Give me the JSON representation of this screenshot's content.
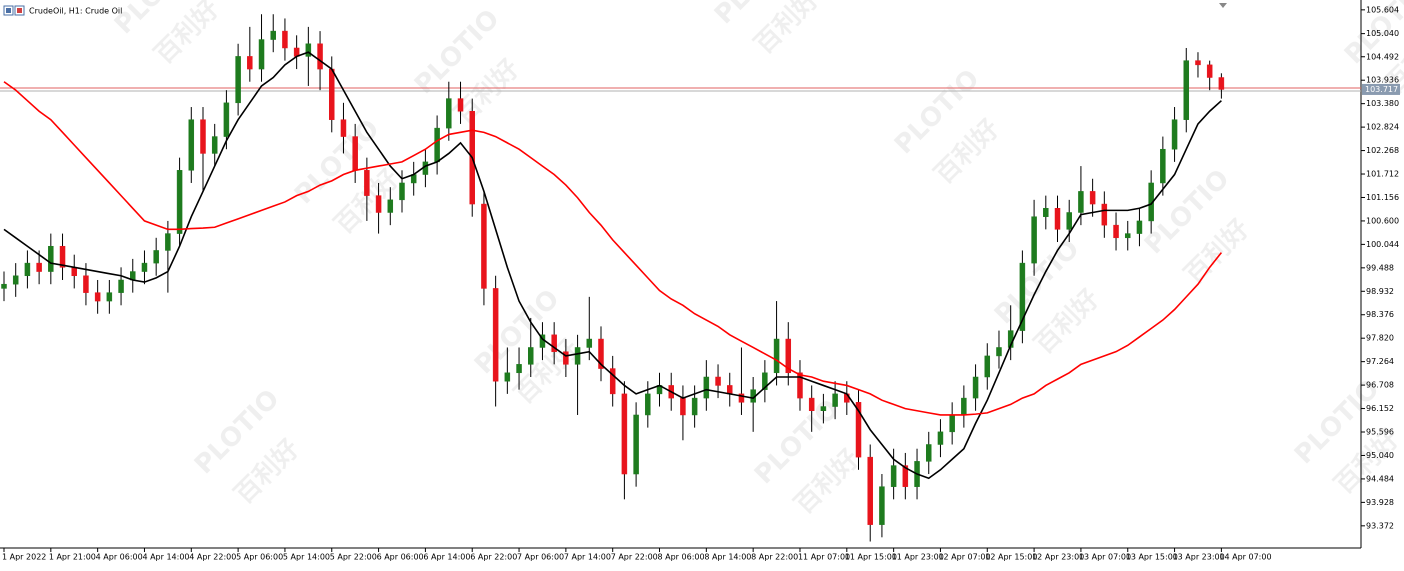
{
  "chart_data": {
    "type": "candlestick",
    "title": "CrudeOil, H1:  Crude Oil",
    "watermark": [
      "PLOTIO",
      "百利好"
    ],
    "categories": [
      "1 Apr 2022",
      null,
      null,
      null,
      "1 Apr 21:00",
      null,
      null,
      null,
      "4 Apr 06:00",
      null,
      null,
      null,
      "4 Apr 14:00",
      null,
      null,
      null,
      "4 Apr 22:00",
      null,
      null,
      null,
      "5 Apr 06:00",
      null,
      null,
      null,
      "5 Apr 14:00",
      null,
      null,
      null,
      "5 Apr 22:00",
      null,
      null,
      null,
      "6 Apr 06:00",
      null,
      null,
      null,
      "6 Apr 14:00",
      null,
      null,
      null,
      "6 Apr 22:00",
      null,
      null,
      null,
      "7 Apr 06:00",
      null,
      null,
      null,
      "7 Apr 14:00",
      null,
      null,
      null,
      "7 Apr 22:00",
      null,
      null,
      null,
      "8 Apr 06:00",
      null,
      null,
      null,
      "8 Apr 14:00",
      null,
      null,
      null,
      "8 Apr 22:00",
      null,
      null,
      null,
      "11 Apr 07:00",
      null,
      null,
      null,
      "11 Apr 15:00",
      null,
      null,
      null,
      "11 Apr 23:00",
      null,
      null,
      null,
      "12 Apr 07:00",
      null,
      null,
      null,
      "12 Apr 15:00",
      null,
      null,
      null,
      "12 Apr 23:00",
      null,
      null,
      null,
      "13 Apr 07:00",
      null,
      null,
      null,
      "13 Apr 15:00",
      null,
      null,
      null,
      "13 Apr 23:00",
      null,
      null,
      null,
      "14 Apr 07:00"
    ],
    "open": [
      99.0,
      99.1,
      99.3,
      99.6,
      99.4,
      100.0,
      99.5,
      99.3,
      98.9,
      98.7,
      98.9,
      99.2,
      99.4,
      99.6,
      99.9,
      100.3,
      101.8,
      103.0,
      102.2,
      102.6,
      103.4,
      104.5,
      104.2,
      104.9,
      105.1,
      104.7,
      104.5,
      104.8,
      104.2,
      103.0,
      102.6,
      101.8,
      101.2,
      100.8,
      101.1,
      101.5,
      101.7,
      102.0,
      102.8,
      103.5,
      103.2,
      101.0,
      99.0,
      96.8,
      97.0,
      97.2,
      97.6,
      97.9,
      97.5,
      97.2,
      97.6,
      97.8,
      97.1,
      96.5,
      94.6,
      96.0,
      96.5,
      96.7,
      96.4,
      96.0,
      96.4,
      96.9,
      96.7,
      96.5,
      96.3,
      96.6,
      97.0,
      97.8,
      97.0,
      96.4,
      96.1,
      96.2,
      96.5,
      96.3,
      95.0,
      93.4,
      94.3,
      94.8,
      94.3,
      94.9,
      95.3,
      95.6,
      96.0,
      96.4,
      96.9,
      97.4,
      97.6,
      98.0,
      99.6,
      100.7,
      100.9,
      100.4,
      100.8,
      101.3,
      101.0,
      100.5,
      100.2,
      100.3,
      100.6,
      101.5,
      102.3,
      103.0,
      104.4,
      104.3,
      104.0
    ],
    "high": [
      99.4,
      99.6,
      99.9,
      99.9,
      100.3,
      100.3,
      99.8,
      99.6,
      99.2,
      99.2,
      99.5,
      99.7,
      99.9,
      100.2,
      100.6,
      102.1,
      103.3,
      103.3,
      102.9,
      103.7,
      104.8,
      105.2,
      105.5,
      105.5,
      105.4,
      105.0,
      105.2,
      105.1,
      104.5,
      103.4,
      102.9,
      102.1,
      101.5,
      101.4,
      101.8,
      102.0,
      102.3,
      103.1,
      103.9,
      103.9,
      103.5,
      101.3,
      99.3,
      97.6,
      97.6,
      98.3,
      98.2,
      98.2,
      97.8,
      97.9,
      98.8,
      98.1,
      97.4,
      96.8,
      96.3,
      96.8,
      97.0,
      97.0,
      96.7,
      96.7,
      97.3,
      97.2,
      97.0,
      97.6,
      96.9,
      97.3,
      98.7,
      98.2,
      97.3,
      96.7,
      96.5,
      96.8,
      96.8,
      96.6,
      95.3,
      94.6,
      95.2,
      95.1,
      95.2,
      95.6,
      95.9,
      96.3,
      96.7,
      97.2,
      97.7,
      98.0,
      98.6,
      99.9,
      101.1,
      101.2,
      101.2,
      101.1,
      101.9,
      101.6,
      101.3,
      100.8,
      100.6,
      100.9,
      101.8,
      102.6,
      103.3,
      104.7,
      104.6,
      104.4,
      104.1
    ],
    "low": [
      98.7,
      98.8,
      99.0,
      99.1,
      99.1,
      99.2,
      99.0,
      98.6,
      98.4,
      98.4,
      98.6,
      98.9,
      99.1,
      99.3,
      98.9,
      100.0,
      101.5,
      101.3,
      101.9,
      102.3,
      103.1,
      103.9,
      103.9,
      104.6,
      104.4,
      104.2,
      103.8,
      103.7,
      102.7,
      102.2,
      101.5,
      100.6,
      100.3,
      100.5,
      100.8,
      101.2,
      101.4,
      101.7,
      102.5,
      102.9,
      100.7,
      98.6,
      96.2,
      96.5,
      96.6,
      96.9,
      97.3,
      97.2,
      96.9,
      96.0,
      97.3,
      96.8,
      96.2,
      94.0,
      94.3,
      95.7,
      96.2,
      96.1,
      95.4,
      95.7,
      96.1,
      96.4,
      96.2,
      96.0,
      95.6,
      96.3,
      96.7,
      96.7,
      96.1,
      95.6,
      95.8,
      95.9,
      96.0,
      94.7,
      93.0,
      93.1,
      94.0,
      94.0,
      94.0,
      94.6,
      95.0,
      95.3,
      95.7,
      96.1,
      96.6,
      97.1,
      97.3,
      97.7,
      99.3,
      100.4,
      100.1,
      100.1,
      100.5,
      100.7,
      100.2,
      99.9,
      99.9,
      100.0,
      100.3,
      101.2,
      102.0,
      102.7,
      104.0,
      103.7,
      103.5
    ],
    "close": [
      99.1,
      99.3,
      99.6,
      99.4,
      100.0,
      99.5,
      99.3,
      98.9,
      98.7,
      98.9,
      99.2,
      99.4,
      99.6,
      99.9,
      100.3,
      101.8,
      103.0,
      102.2,
      102.6,
      103.4,
      104.5,
      104.2,
      104.9,
      105.1,
      104.7,
      104.5,
      104.8,
      104.2,
      103.0,
      102.6,
      101.8,
      101.2,
      100.8,
      101.1,
      101.5,
      101.7,
      102.0,
      102.8,
      103.5,
      103.2,
      101.0,
      99.0,
      96.8,
      97.0,
      97.2,
      97.6,
      97.9,
      97.5,
      97.2,
      97.6,
      97.8,
      97.1,
      96.5,
      94.6,
      96.0,
      96.5,
      96.7,
      96.4,
      96.0,
      96.4,
      96.9,
      96.7,
      96.5,
      96.3,
      96.6,
      97.0,
      97.8,
      97.0,
      96.4,
      96.1,
      96.2,
      96.5,
      96.3,
      95.0,
      93.4,
      94.3,
      94.8,
      94.3,
      94.9,
      95.3,
      95.6,
      96.0,
      96.4,
      96.9,
      97.4,
      97.6,
      98.0,
      99.6,
      100.7,
      100.9,
      100.4,
      100.8,
      101.3,
      101.0,
      100.5,
      100.2,
      100.3,
      100.6,
      101.5,
      102.3,
      103.0,
      104.4,
      104.3,
      104.0,
      103.717
    ],
    "up_color": "#1e7b1e",
    "down_color": "#e8141c",
    "wick_color": "#000000",
    "lines": [
      {
        "color": "#000000",
        "values": [
          100.4,
          100.2,
          100.0,
          99.8,
          99.6,
          99.55,
          99.5,
          99.45,
          99.4,
          99.35,
          99.3,
          99.2,
          99.15,
          99.25,
          99.4,
          100.0,
          100.7,
          101.3,
          101.9,
          102.5,
          103.0,
          103.4,
          103.8,
          104.0,
          104.3,
          104.5,
          104.6,
          104.4,
          104.2,
          103.7,
          103.2,
          102.7,
          102.3,
          101.9,
          101.6,
          101.7,
          101.9,
          102.0,
          102.2,
          102.45,
          102.1,
          101.3,
          100.4,
          99.5,
          98.7,
          98.2,
          97.8,
          97.6,
          97.4,
          97.45,
          97.5,
          97.2,
          96.95,
          96.7,
          96.5,
          96.6,
          96.7,
          96.55,
          96.4,
          96.5,
          96.6,
          96.55,
          96.5,
          96.45,
          96.4,
          96.65,
          96.9,
          96.9,
          96.9,
          96.8,
          96.7,
          96.6,
          96.5,
          96.1,
          95.65,
          95.3,
          94.95,
          94.75,
          94.6,
          94.5,
          94.7,
          94.95,
          95.2,
          95.8,
          96.35,
          97.0,
          97.65,
          98.25,
          98.85,
          99.4,
          99.9,
          100.3,
          100.75,
          100.8,
          100.85,
          100.85,
          100.85,
          100.9,
          101.0,
          101.35,
          101.7,
          102.3,
          102.9,
          103.2,
          103.45
        ]
      },
      {
        "color": "#ff0000",
        "values": [
          103.9,
          103.7,
          103.45,
          103.2,
          103.0,
          102.7,
          102.4,
          102.1,
          101.8,
          101.5,
          101.2,
          100.9,
          100.6,
          100.5,
          100.4,
          100.4,
          100.42,
          100.43,
          100.45,
          100.55,
          100.65,
          100.75,
          100.85,
          100.95,
          101.05,
          101.2,
          101.3,
          101.45,
          101.55,
          101.7,
          101.8,
          101.85,
          101.9,
          101.95,
          102.0,
          102.15,
          102.3,
          102.5,
          102.65,
          102.7,
          102.75,
          102.7,
          102.6,
          102.45,
          102.3,
          102.1,
          101.9,
          101.7,
          101.45,
          101.15,
          100.8,
          100.5,
          100.15,
          99.85,
          99.55,
          99.25,
          98.95,
          98.75,
          98.6,
          98.4,
          98.25,
          98.1,
          97.9,
          97.75,
          97.6,
          97.45,
          97.3,
          97.1,
          96.95,
          96.9,
          96.8,
          96.75,
          96.7,
          96.6,
          96.5,
          96.35,
          96.25,
          96.15,
          96.1,
          96.05,
          96.0,
          96.0,
          96.0,
          96.02,
          96.05,
          96.15,
          96.25,
          96.4,
          96.5,
          96.7,
          96.85,
          97.0,
          97.2,
          97.3,
          97.4,
          97.5,
          97.65,
          97.85,
          98.05,
          98.25,
          98.5,
          98.8,
          99.1,
          99.5,
          99.85
        ]
      }
    ],
    "last_price": 103.717,
    "last_price_color": "#e06060",
    "ylim": [
      92.87,
      105.79
    ],
    "yticks": [
      105.604,
      {
        "value": 105.04,
        "label": "105.040"
      },
      104.492,
      103.936,
      {
        "value": 103.38,
        "label": "103.380"
      },
      102.824,
      102.268,
      101.712,
      101.156,
      {
        "value": 100.6,
        "label": "100.600"
      },
      100.044,
      99.488,
      98.932,
      98.376,
      {
        "value": 97.82,
        "label": "97.820"
      },
      97.264,
      96.708,
      96.152,
      95.596,
      {
        "value": 95.04,
        "label": "95.040"
      },
      94.484,
      93.928,
      93.372
    ],
    "grid": false
  }
}
